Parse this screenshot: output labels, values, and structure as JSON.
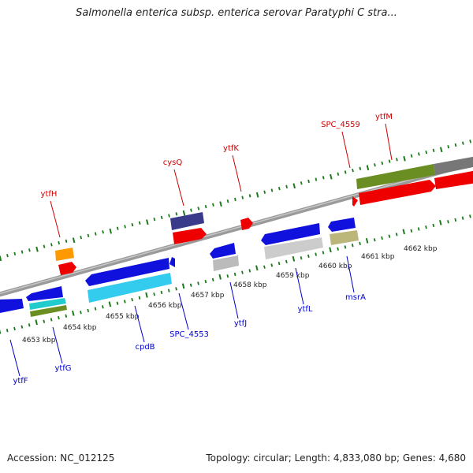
{
  "title": "Salmonella enterica subsp. enterica serovar Paratyphi C stra...",
  "footer": {
    "accession": "Accession: NC_012125",
    "summary": "Topology: circular; Length: 4,833,080 bp; Genes: 4,680"
  },
  "colors": {
    "backbone": "#888888",
    "forward_label": "#cc0000",
    "reverse_label": "#0000cc",
    "tick": "#1a7a1a"
  },
  "kbp_labels": [
    {
      "text": "4653 kbp"
    },
    {
      "text": "4654 kbp"
    },
    {
      "text": "4655 kbp"
    },
    {
      "text": "4656 kbp"
    },
    {
      "text": "4657 kbp"
    },
    {
      "text": "4658 kbp"
    },
    {
      "text": "4659 kbp"
    },
    {
      "text": "4660 kbp"
    },
    {
      "text": "4661 kbp"
    },
    {
      "text": "4662 kbp"
    }
  ],
  "forward_genes": [
    {
      "name": "ytfH"
    },
    {
      "name": "cysQ"
    },
    {
      "name": "ytfK"
    },
    {
      "name": "SPC_4559"
    },
    {
      "name": "ytfM"
    }
  ],
  "reverse_genes": [
    {
      "name": "ytfF"
    },
    {
      "name": "ytfG"
    },
    {
      "name": "cpdB"
    },
    {
      "name": "SPC_4553"
    },
    {
      "name": "ytfJ"
    },
    {
      "name": "ytfL"
    },
    {
      "name": "msrA"
    }
  ]
}
